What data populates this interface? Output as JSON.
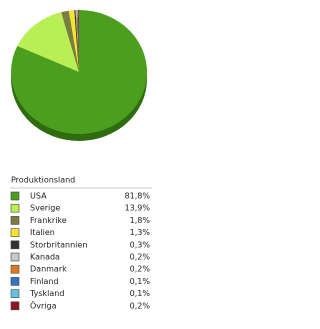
{
  "chart_data": {
    "type": "pie",
    "legend_title": "Produktionsland",
    "categories": [
      "USA",
      "Sverige",
      "Frankrike",
      "Italien",
      "Storbritannien",
      "Kanada",
      "Danmark",
      "Finland",
      "Tyskland",
      "Övriga"
    ],
    "values": [
      81.8,
      13.9,
      1.8,
      1.3,
      0.3,
      0.2,
      0.2,
      0.1,
      0.1,
      0.2
    ],
    "value_labels": [
      "81,8%",
      "13,9%",
      "1,8%",
      "1,3%",
      "0,3%",
      "0,2%",
      "0,2%",
      "0,1%",
      "0,1%",
      "0,2%"
    ],
    "colors": [
      "#4c9f1e",
      "#b9ef55",
      "#7b7b44",
      "#f2e431",
      "#333333",
      "#c9c9c9",
      "#e07a22",
      "#3474c2",
      "#62c2e2",
      "#921424"
    ]
  }
}
